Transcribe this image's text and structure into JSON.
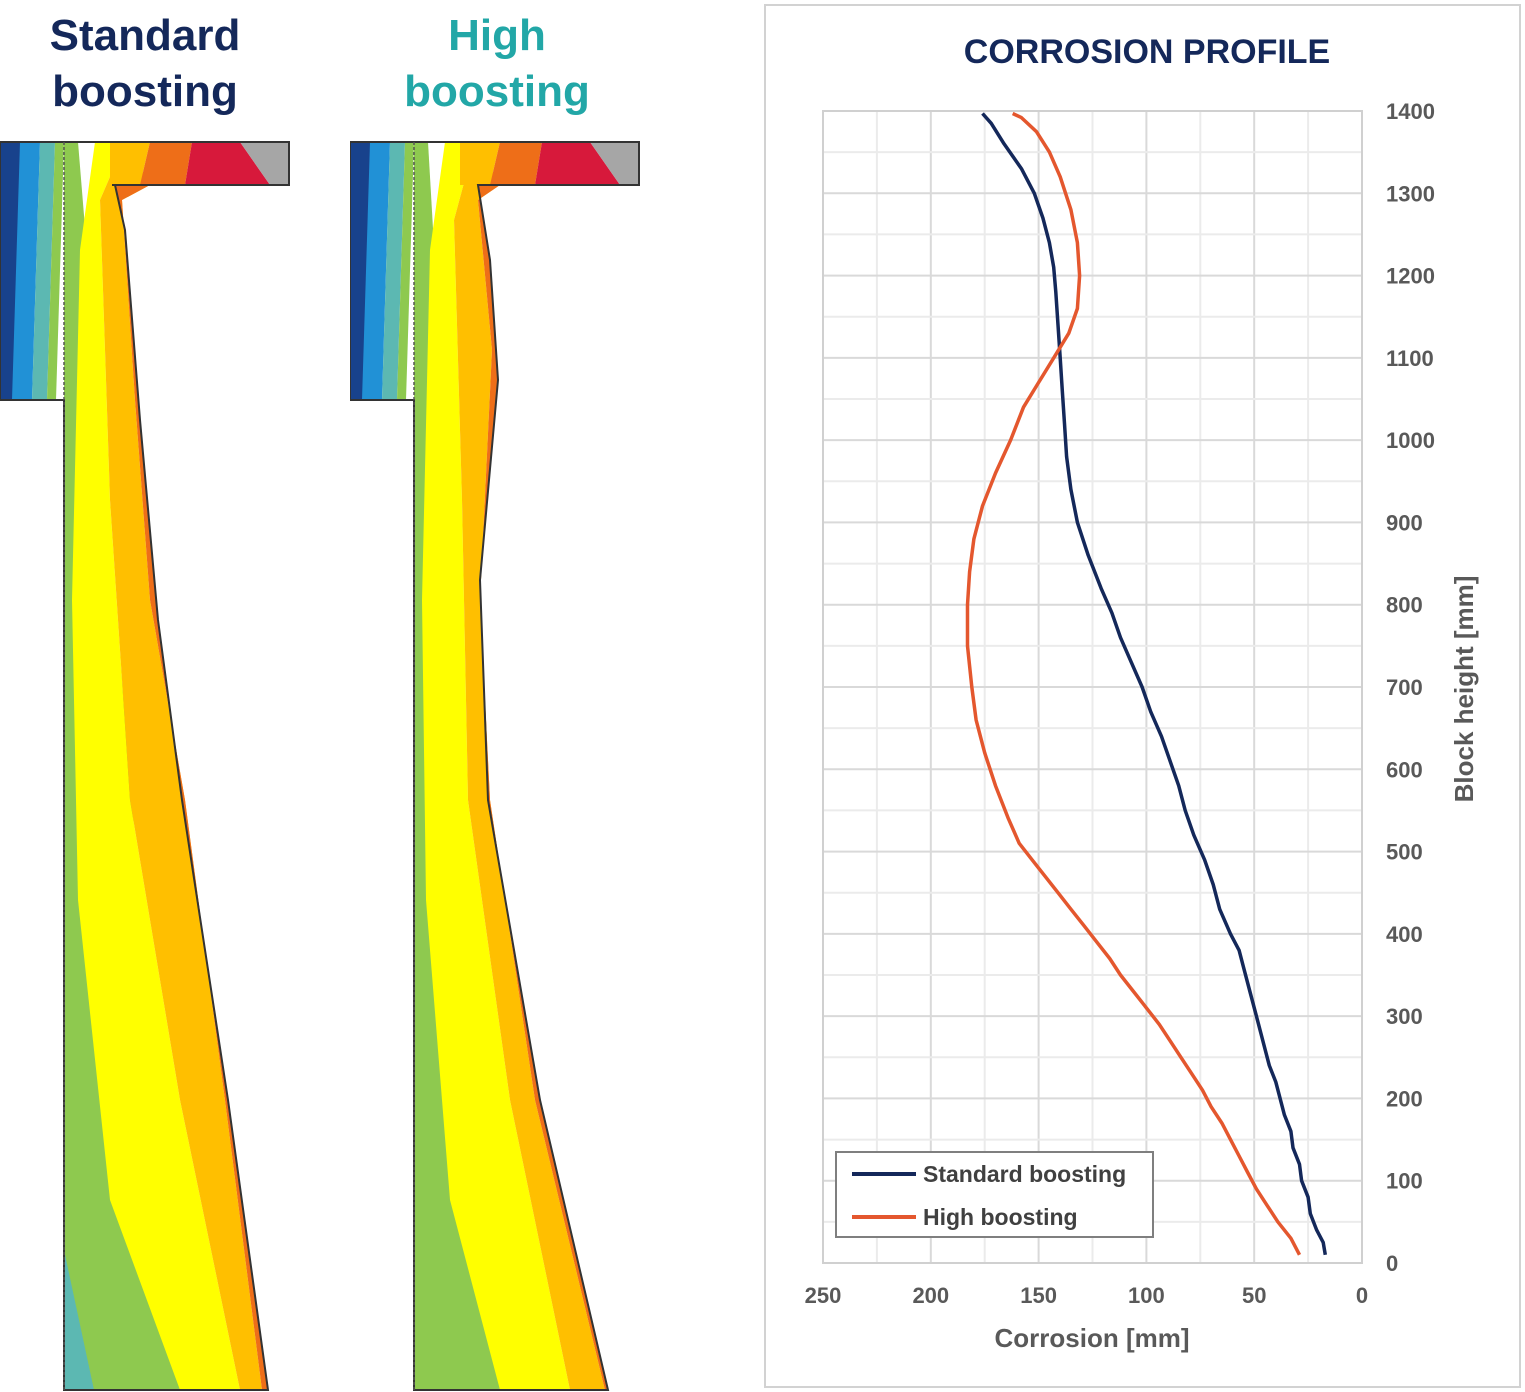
{
  "panels": {
    "standard": {
      "title_line1": "Standard",
      "title_line2": "boosting",
      "color": "#14285a"
    },
    "high": {
      "title_line1": "High",
      "title_line2": "boosting",
      "color": "#22a7a7"
    }
  },
  "zone_colors": [
    "#18428c",
    "#2191d6",
    "#5cb8b2",
    "#8ec94f",
    "#ffff00",
    "#ffbf00",
    "#ee6e18",
    "#d7193b",
    "#a6a6a6"
  ],
  "chart_data": {
    "type": "line",
    "title": "CORROSION PROFILE",
    "xlabel": "Corrosion [mm]",
    "ylabel": "Block height [mm]",
    "xlim": [
      0,
      250
    ],
    "x_reversed": true,
    "ylim": [
      0,
      1400
    ],
    "y_axis_position": "right",
    "xticks": [
      250,
      200,
      150,
      100,
      50,
      0
    ],
    "yticks": [
      0,
      100,
      200,
      300,
      400,
      500,
      600,
      700,
      800,
      900,
      1000,
      1100,
      1200,
      1300,
      1400
    ],
    "grid": true,
    "legend_position": "bottom-left",
    "series": [
      {
        "name": "Standard boosting",
        "color": "#14285a",
        "points": [
          [
            17,
            10
          ],
          [
            18,
            25
          ],
          [
            21,
            40
          ],
          [
            24,
            60
          ],
          [
            25,
            80
          ],
          [
            28,
            100
          ],
          [
            29,
            120
          ],
          [
            32,
            140
          ],
          [
            33,
            160
          ],
          [
            36,
            180
          ],
          [
            38,
            200
          ],
          [
            40,
            220
          ],
          [
            43,
            240
          ],
          [
            45,
            260
          ],
          [
            47,
            280
          ],
          [
            49,
            300
          ],
          [
            52,
            330
          ],
          [
            55,
            360
          ],
          [
            57,
            380
          ],
          [
            61,
            400
          ],
          [
            66,
            430
          ],
          [
            69,
            460
          ],
          [
            73,
            490
          ],
          [
            78,
            520
          ],
          [
            82,
            550
          ],
          [
            85,
            580
          ],
          [
            89,
            610
          ],
          [
            93,
            640
          ],
          [
            98,
            670
          ],
          [
            102,
            700
          ],
          [
            107,
            730
          ],
          [
            112,
            760
          ],
          [
            116,
            790
          ],
          [
            121,
            820
          ],
          [
            127,
            860
          ],
          [
            132,
            900
          ],
          [
            135,
            940
          ],
          [
            137,
            980
          ],
          [
            138,
            1020
          ],
          [
            139,
            1060
          ],
          [
            140,
            1100
          ],
          [
            141,
            1140
          ],
          [
            142,
            1180
          ],
          [
            143,
            1210
          ],
          [
            145,
            1240
          ],
          [
            148,
            1270
          ],
          [
            152,
            1300
          ],
          [
            158,
            1330
          ],
          [
            166,
            1360
          ],
          [
            172,
            1385
          ],
          [
            176,
            1397
          ]
        ]
      },
      {
        "name": "High boosting",
        "color": "#e4572e",
        "points": [
          [
            29,
            10
          ],
          [
            33,
            30
          ],
          [
            39,
            50
          ],
          [
            44,
            70
          ],
          [
            49,
            90
          ],
          [
            53,
            110
          ],
          [
            57,
            130
          ],
          [
            61,
            150
          ],
          [
            65,
            170
          ],
          [
            70,
            190
          ],
          [
            74,
            210
          ],
          [
            79,
            230
          ],
          [
            84,
            250
          ],
          [
            89,
            270
          ],
          [
            94,
            290
          ],
          [
            100,
            310
          ],
          [
            106,
            330
          ],
          [
            112,
            350
          ],
          [
            117,
            370
          ],
          [
            123,
            390
          ],
          [
            129,
            410
          ],
          [
            135,
            430
          ],
          [
            141,
            450
          ],
          [
            147,
            470
          ],
          [
            153,
            490
          ],
          [
            159,
            510
          ],
          [
            164,
            540
          ],
          [
            170,
            580
          ],
          [
            175,
            620
          ],
          [
            179,
            660
          ],
          [
            181,
            700
          ],
          [
            183,
            750
          ],
          [
            183,
            800
          ],
          [
            182,
            840
          ],
          [
            180,
            880
          ],
          [
            176,
            920
          ],
          [
            170,
            960
          ],
          [
            163,
            1000
          ],
          [
            157,
            1040
          ],
          [
            150,
            1070
          ],
          [
            143,
            1100
          ],
          [
            136,
            1130
          ],
          [
            132,
            1160
          ],
          [
            131,
            1200
          ],
          [
            132,
            1240
          ],
          [
            135,
            1280
          ],
          [
            140,
            1320
          ],
          [
            145,
            1350
          ],
          [
            151,
            1375
          ],
          [
            158,
            1392
          ],
          [
            162,
            1397
          ]
        ]
      }
    ]
  }
}
